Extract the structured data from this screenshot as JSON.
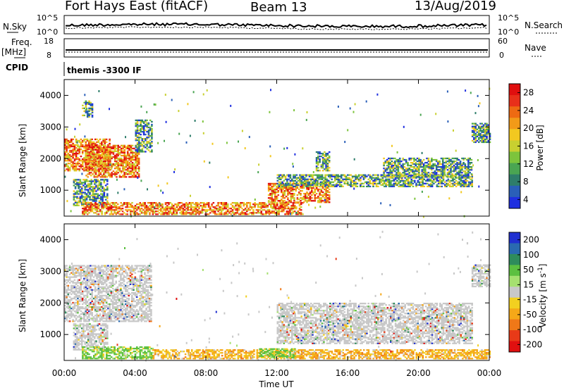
{
  "header": {
    "station": "Fort Hays East (fitACF)",
    "beam": "Beam 13",
    "date": "13/Aug/2019"
  },
  "strips": {
    "sky_label": "N.Sky",
    "sky_tick_top": "10^5",
    "sky_tick_bottom": "10^0",
    "search_label": "N.Search",
    "search_tick_top": "10^5",
    "search_tick_bottom": "10^0",
    "freq_label_1": "Freq.",
    "freq_label_2": "[MHz]",
    "freq_tick_top": "18",
    "freq_tick_bottom": "8",
    "nave_label": "Nave",
    "nave_tick_top": "60",
    "nave_tick_bottom": "0",
    "cpid_label": "CPID",
    "cpid_value": "themis -3300 IF"
  },
  "chart_data": [
    {
      "type": "heatmap",
      "name": "power",
      "xlabel": "",
      "ylabel": "Slant Range [km]",
      "ylim": [
        180,
        4500
      ],
      "xlim_hours": [
        0,
        24
      ],
      "y_ticks": [
        "1000",
        "2000",
        "3000",
        "4000"
      ],
      "colorbar": {
        "label": "Power [dB]",
        "ticks": [
          "4",
          "8",
          "12",
          "16",
          "20",
          "24",
          "28"
        ],
        "range": [
          0,
          30
        ],
        "colors": [
          "#1f2fe0",
          "#2a5fb8",
          "#2e7d6a",
          "#4aa552",
          "#7dc43c",
          "#c8d030",
          "#f2c820",
          "#f29a18",
          "#ee6a12",
          "#e8301a",
          "#e00f0f"
        ]
      },
      "regions_hours_km": [
        {
          "t0": 0.0,
          "t1": 2.6,
          "r0": 1600,
          "r1": 2600,
          "level": "high"
        },
        {
          "t0": 1.2,
          "t1": 4.2,
          "r0": 1400,
          "r1": 2400,
          "level": "high"
        },
        {
          "t0": 4.0,
          "t1": 4.9,
          "r0": 2200,
          "r1": 3200,
          "level": "mid"
        },
        {
          "t0": 0.5,
          "t1": 2.4,
          "r0": 500,
          "r1": 1350,
          "level": "mid"
        },
        {
          "t0": 1.0,
          "t1": 13.5,
          "r0": 220,
          "r1": 600,
          "level": "high"
        },
        {
          "t0": 1.0,
          "t1": 1.6,
          "r0": 3300,
          "r1": 3800,
          "level": "mid"
        },
        {
          "t0": 11.5,
          "t1": 15.0,
          "r0": 600,
          "r1": 1200,
          "level": "high"
        },
        {
          "t0": 12.0,
          "t1": 23.0,
          "r0": 1100,
          "r1": 1500,
          "level": "mid"
        },
        {
          "t0": 18.0,
          "t1": 23.0,
          "r0": 1400,
          "r1": 2000,
          "level": "mid"
        },
        {
          "t0": 14.2,
          "t1": 15.0,
          "r0": 1600,
          "r1": 2200,
          "level": "mid"
        },
        {
          "t0": 23.0,
          "t1": 24.0,
          "r0": 2500,
          "r1": 3100,
          "level": "mid"
        }
      ]
    },
    {
      "type": "heatmap",
      "name": "velocity",
      "xlabel": "Time UT",
      "ylabel": "Slant Range [km]",
      "ylim": [
        180,
        4500
      ],
      "xlim_hours": [
        0,
        24
      ],
      "x_ticks": [
        "00:00",
        "04:00",
        "08:00",
        "12:00",
        "16:00",
        "20:00",
        "00:00"
      ],
      "y_ticks": [
        "1000",
        "2000",
        "3000",
        "4000"
      ],
      "colorbar": {
        "label": "Velocity [m s^-1]",
        "ticks": [
          "200",
          "100",
          "50",
          "15",
          "-15",
          "-50",
          "-100",
          "-200"
        ],
        "colors": [
          "#2030d0",
          "#2a6ab0",
          "#2e8c5c",
          "#5cc040",
          "#a6e070",
          "#c8c8c8",
          "#f2d020",
          "#f5a818",
          "#f07818",
          "#e83a18",
          "#e01010"
        ]
      },
      "regions_hours_km": [
        {
          "t0": 0.0,
          "t1": 4.9,
          "r0": 1400,
          "r1": 3200,
          "class": "gray"
        },
        {
          "t0": 0.5,
          "t1": 2.4,
          "r0": 500,
          "r1": 1350,
          "class": "gray"
        },
        {
          "t0": 1.0,
          "t1": 5.0,
          "r0": 220,
          "r1": 600,
          "class": "green"
        },
        {
          "t0": 5.0,
          "t1": 13.5,
          "r0": 220,
          "r1": 500,
          "class": "orange"
        },
        {
          "t0": 11.0,
          "t1": 13.0,
          "r0": 250,
          "r1": 550,
          "class": "green"
        },
        {
          "t0": 12.0,
          "t1": 23.0,
          "r0": 700,
          "r1": 2000,
          "class": "gray"
        },
        {
          "t0": 13.0,
          "t1": 24.0,
          "r0": 220,
          "r1": 500,
          "class": "orange"
        },
        {
          "t0": 23.0,
          "t1": 24.0,
          "r0": 2500,
          "r1": 3200,
          "class": "gray"
        }
      ]
    }
  ]
}
